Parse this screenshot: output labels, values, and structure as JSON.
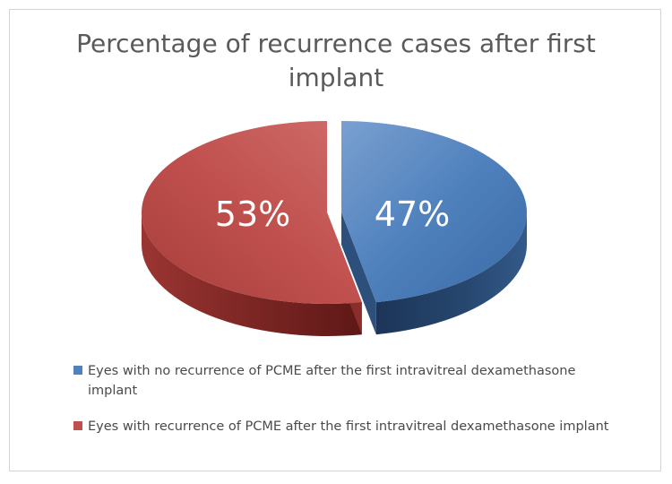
{
  "chart_data": {
    "type": "pie",
    "style": "3d-exploded",
    "title": "Percentage of recurrence cases after first implant",
    "slices": [
      {
        "label": "Eyes with no recurrence of PCME after the first intravitreal dexamethasone implant",
        "value": 47,
        "display": "47%",
        "color": "#4f81bd"
      },
      {
        "label": "Eyes with recurrence of PCME after the first intravitreal dexamethasone implant",
        "value": 53,
        "display": "53%",
        "color": "#c0504d"
      }
    ],
    "legend_position": "bottom"
  }
}
